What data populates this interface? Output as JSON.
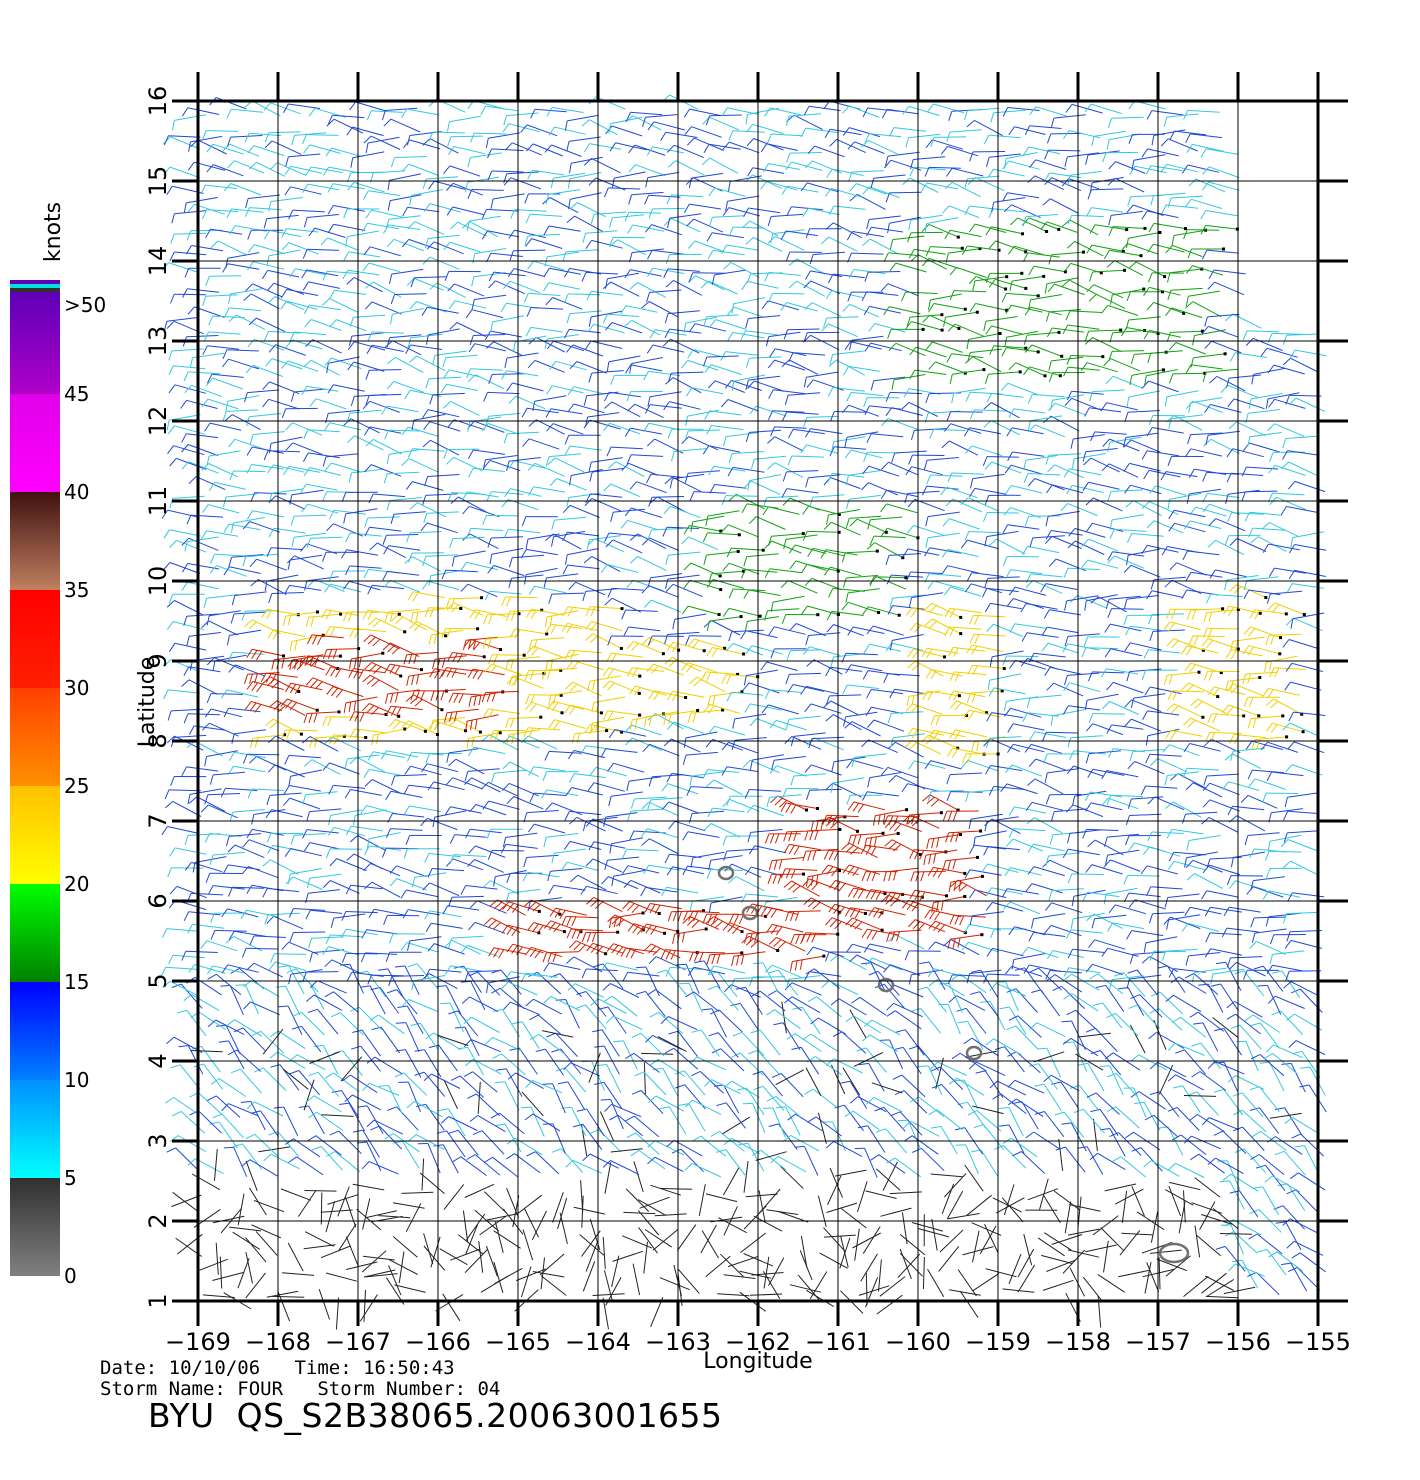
{
  "chart_data": {
    "type": "scatter",
    "xlabel": "Longitude",
    "ylabel": "Latitude",
    "xlim": [
      -169,
      -155
    ],
    "ylim": [
      1,
      16
    ],
    "x_ticks": [
      "−169",
      "−168",
      "−167",
      "−166",
      "−165",
      "−164",
      "−163",
      "−162",
      "−161",
      "−160",
      "−159",
      "−158",
      "−157",
      "−156",
      "−155"
    ],
    "y_ticks": [
      "1",
      "2",
      "3",
      "4",
      "5",
      "6",
      "7",
      "8",
      "9",
      "10",
      "11",
      "12",
      "13",
      "14",
      "15",
      "16"
    ],
    "grid": true,
    "colorbar": {
      "title": "knots",
      "labels": [
        "0",
        "5",
        "10",
        "15",
        "20",
        "25",
        "30",
        "35",
        "40",
        "45",
        ">50"
      ],
      "bands": [
        {
          "from": 0,
          "to": 5,
          "colors": [
            "#808080",
            "#303030"
          ]
        },
        {
          "from": 5,
          "to": 10,
          "colors": [
            "#00ffff",
            "#0090ff"
          ]
        },
        {
          "from": 10,
          "to": 15,
          "colors": [
            "#0080ff",
            "#0000ff"
          ]
        },
        {
          "from": 15,
          "to": 20,
          "colors": [
            "#008000",
            "#00ff00"
          ]
        },
        {
          "from": 20,
          "to": 25,
          "colors": [
            "#ffff00",
            "#ffc000"
          ]
        },
        {
          "from": 25,
          "to": 30,
          "colors": [
            "#ff9000",
            "#ff4000"
          ]
        },
        {
          "from": 30,
          "to": 35,
          "colors": [
            "#ff2000",
            "#ff0000"
          ]
        },
        {
          "from": 35,
          "to": 40,
          "colors": [
            "#c08060",
            "#401010"
          ]
        },
        {
          "from": 40,
          "to": 45,
          "colors": [
            "#ff00ff",
            "#e000e8"
          ]
        },
        {
          "from": 45,
          "to": 50,
          "colors": [
            "#b000c8",
            "#6000b8"
          ]
        }
      ]
    },
    "speed_colors": {
      "calm": "#222222",
      "light": "#33c8e0",
      "moderate": "#1f49d6",
      "fresh": "#12a012",
      "strong": "#f0d000",
      "gale": "#d02000"
    },
    "wind_regions": [
      {
        "name": "band-north",
        "lon": [
          -160,
          -156
        ],
        "lat": [
          12.5,
          14.5
        ],
        "class": "fresh"
      },
      {
        "name": "band-west",
        "lon": [
          -168,
          -163.5
        ],
        "lat": [
          8,
          9.8
        ],
        "class": "strong"
      },
      {
        "name": "band-west-core",
        "lon": [
          -168,
          -165
        ],
        "lat": [
          8.3,
          9.3
        ],
        "class": "gale"
      },
      {
        "name": "band-center",
        "lon": [
          -164,
          -162
        ],
        "lat": [
          8.2,
          9.2
        ],
        "class": "strong"
      },
      {
        "name": "band-east",
        "lon": [
          -159.8,
          -158.8
        ],
        "lat": [
          7.7,
          9.8
        ],
        "class": "strong"
      },
      {
        "name": "band-south",
        "lon": [
          -165,
          -161
        ],
        "lat": [
          5.2,
          6
        ],
        "class": "gale"
      },
      {
        "name": "band-southeast",
        "lon": [
          -161.5,
          -159
        ],
        "lat": [
          5.5,
          7.2
        ],
        "class": "gale"
      },
      {
        "name": "band-far-east",
        "lon": [
          -156.5,
          -155
        ],
        "lat": [
          8,
          9.8
        ],
        "class": "strong"
      },
      {
        "name": "band-mid",
        "lon": [
          -162.5,
          -160
        ],
        "lat": [
          9.5,
          11
        ],
        "class": "fresh"
      },
      {
        "name": "calm-south",
        "lon": [
          -169,
          -156
        ],
        "lat": [
          1,
          2.5
        ],
        "class": "calm"
      }
    ],
    "islands": [
      {
        "lon": -162.4,
        "lat": 6.35
      },
      {
        "lon": -162.1,
        "lat": 5.85
      },
      {
        "lon": -160.4,
        "lat": 4.95
      },
      {
        "lon": -159.3,
        "lat": 4.1
      },
      {
        "lon": -156.8,
        "lat": 1.6
      }
    ]
  },
  "info": {
    "line1": "Date: 10/10/06   Time: 16:50:43",
    "line2": "Storm Name: FOUR   Storm Number: 04",
    "file_id": "BYU  QS_S2B38065.20063001655"
  }
}
